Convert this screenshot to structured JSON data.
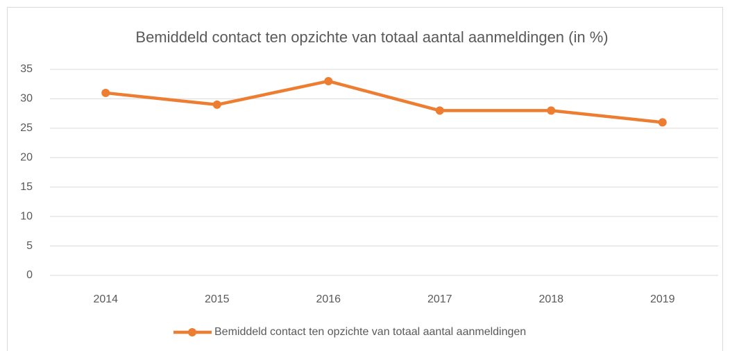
{
  "chart_data": {
    "type": "line",
    "title": "Bemiddeld contact ten opzichte van totaal aantal aanmeldingen (in %)",
    "categories": [
      "2014",
      "2015",
      "2016",
      "2017",
      "2018",
      "2019"
    ],
    "series": [
      {
        "name": "Bemiddeld contact ten opzichte van totaal aantal aanmeldingen",
        "color": "#ed7d31",
        "values": [
          31,
          29,
          33,
          28,
          28,
          26
        ]
      }
    ],
    "ylim": [
      0,
      35
    ],
    "yticks": [
      0,
      5,
      10,
      15,
      20,
      25,
      30,
      35
    ],
    "grid": true,
    "legend": "bottom"
  }
}
